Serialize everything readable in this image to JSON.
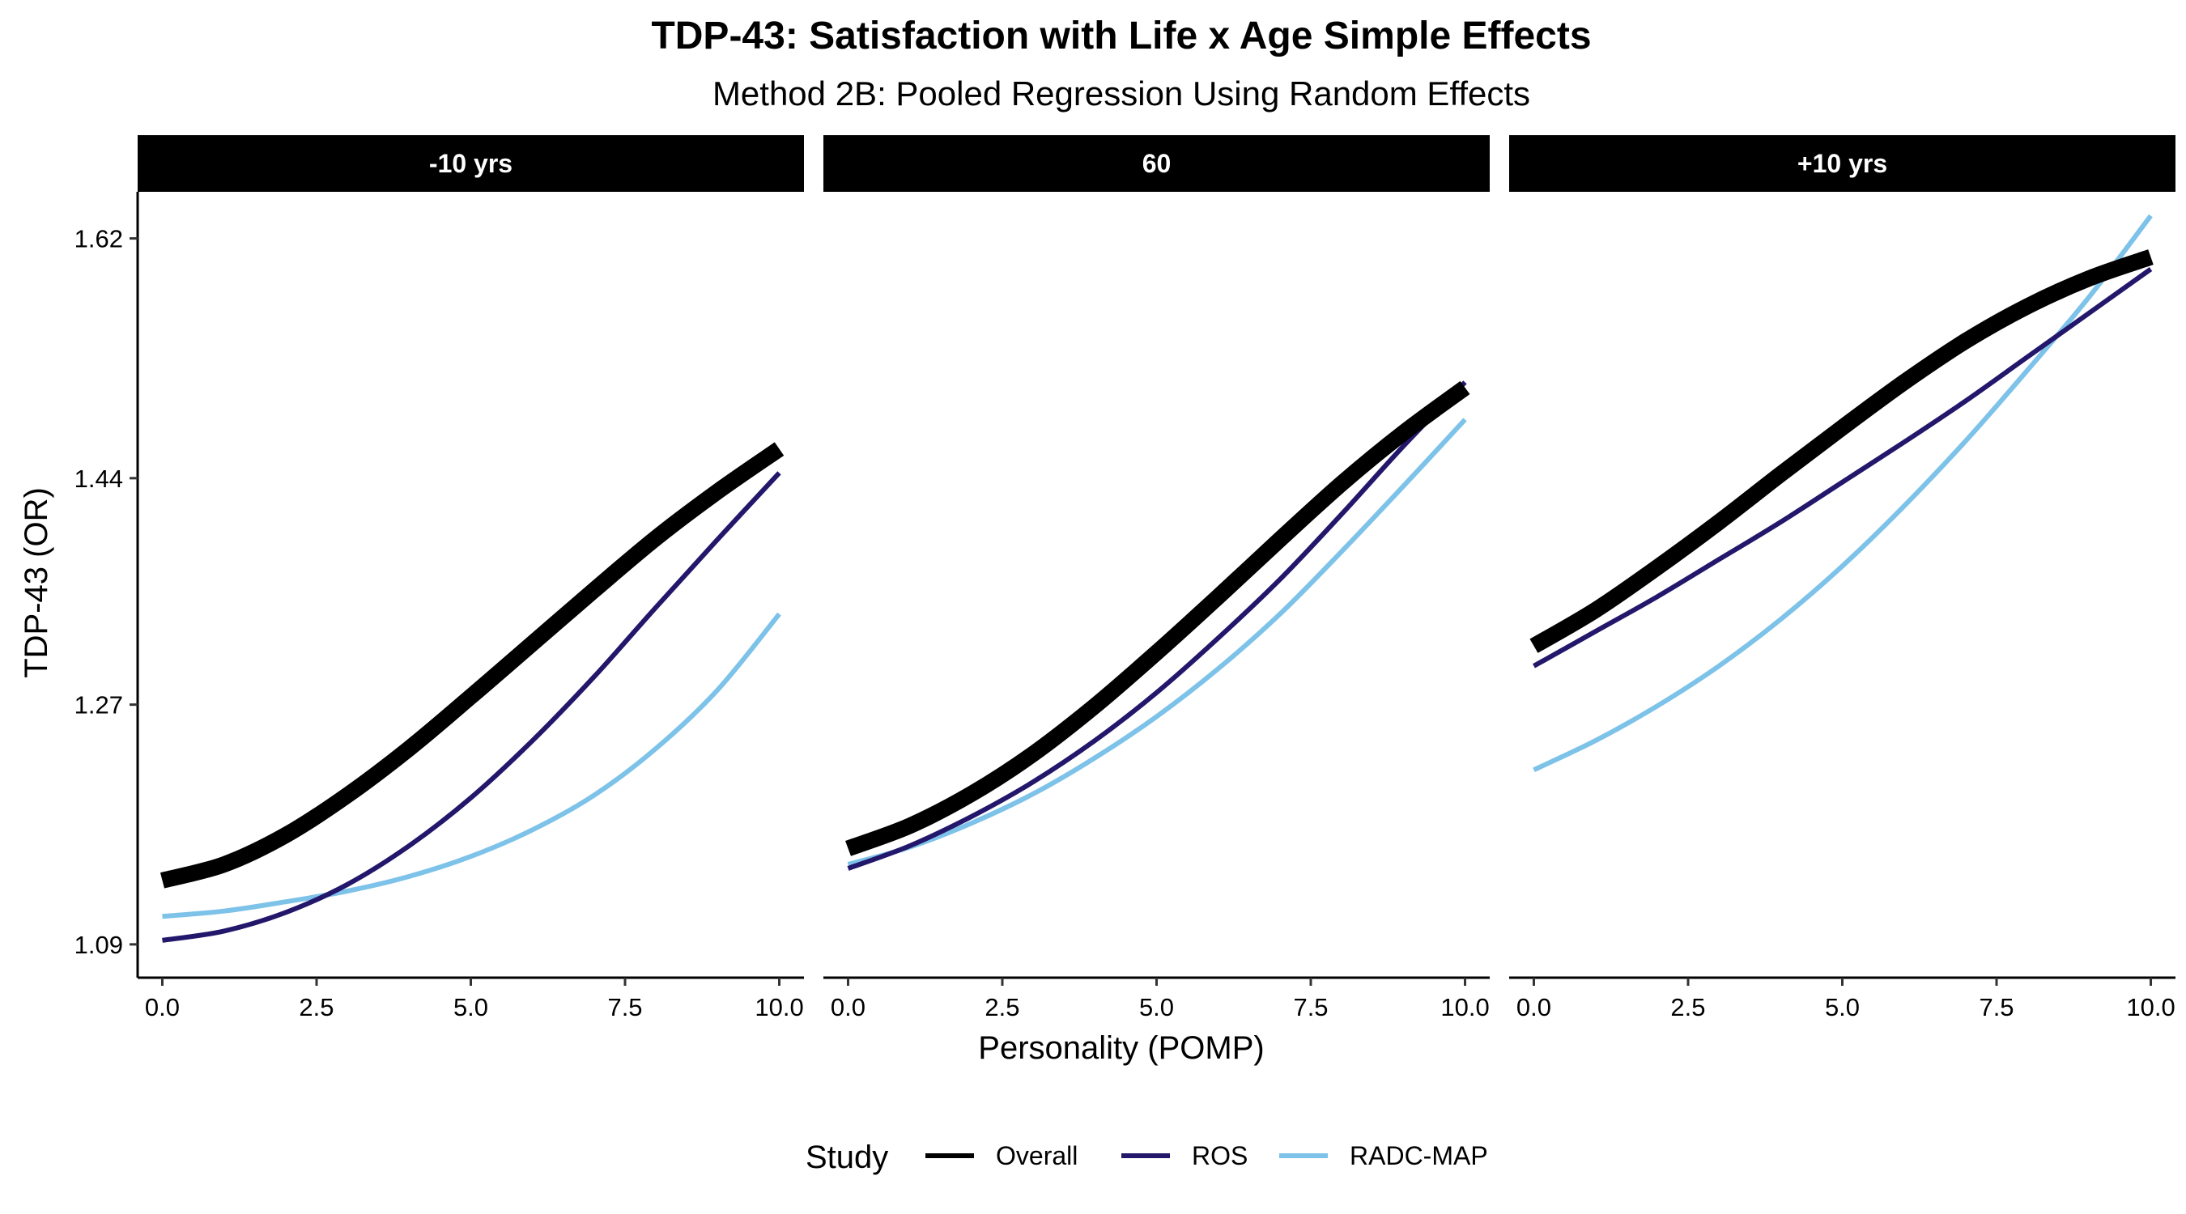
{
  "title": "TDP-43: Satisfaction with Life x Age Simple Effects",
  "subtitle": "Method 2B: Pooled Regression Using Random Effects",
  "legend": {
    "title": "Study",
    "items": [
      {
        "label": "Overall",
        "color": "#000000"
      },
      {
        "label": "ROS",
        "color": "#23176b"
      },
      {
        "label": "RADC-MAP",
        "color": "#7dc2e8"
      }
    ]
  },
  "chart_data": {
    "type": "line",
    "title": "TDP-43: Satisfaction with Life x Age Simple Effects",
    "subtitle": "Method 2B: Pooled Regression Using Random Effects",
    "xlabel": "Personality (POMP)",
    "ylabel": "TDP-43 (OR)",
    "xlim": [
      -0.4,
      10.4
    ],
    "ylim": [
      1.065,
      1.655
    ],
    "x_ticks": [
      0,
      2.5,
      5,
      7.5,
      10
    ],
    "x_tick_labels": [
      "0.0",
      "2.5",
      "5.0",
      "7.5",
      "10.0"
    ],
    "y_ticks": [
      1.09,
      1.27,
      1.44,
      1.62
    ],
    "y_tick_labels": [
      "1.09",
      "1.27",
      "1.44",
      "1.62"
    ],
    "grid": false,
    "legend_position": "bottom",
    "x": [
      0,
      1,
      2,
      3,
      4,
      5,
      6,
      7,
      8,
      9,
      10
    ],
    "panels": [
      {
        "label": "-10 yrs",
        "series": [
          {
            "name": "Overall",
            "values": [
              1.138,
              1.15,
              1.172,
              1.202,
              1.237,
              1.276,
              1.316,
              1.356,
              1.395,
              1.43,
              1.462
            ]
          },
          {
            "name": "ROS",
            "values": [
              1.093,
              1.1,
              1.114,
              1.135,
              1.164,
              1.2,
              1.243,
              1.291,
              1.343,
              1.394,
              1.444
            ]
          },
          {
            "name": "RADC-MAP",
            "values": [
              1.111,
              1.115,
              1.122,
              1.13,
              1.141,
              1.156,
              1.176,
              1.202,
              1.237,
              1.281,
              1.338
            ]
          }
        ]
      },
      {
        "label": "60",
        "series": [
          {
            "name": "Overall",
            "values": [
              1.162,
              1.179,
              1.203,
              1.233,
              1.269,
              1.309,
              1.351,
              1.394,
              1.436,
              1.474,
              1.508
            ]
          },
          {
            "name": "ROS",
            "values": [
              1.147,
              1.164,
              1.186,
              1.212,
              1.243,
              1.279,
              1.32,
              1.364,
              1.413,
              1.464,
              1.512
            ]
          },
          {
            "name": "RADC-MAP",
            "values": [
              1.15,
              1.163,
              1.181,
              1.203,
              1.23,
              1.261,
              1.297,
              1.338,
              1.385,
              1.434,
              1.484
            ]
          }
        ]
      },
      {
        "label": "+10 yrs",
        "series": [
          {
            "name": "Overall",
            "values": [
              1.314,
              1.341,
              1.373,
              1.407,
              1.443,
              1.478,
              1.512,
              1.543,
              1.569,
              1.59,
              1.606
            ]
          },
          {
            "name": "ROS",
            "values": [
              1.299,
              1.325,
              1.351,
              1.379,
              1.407,
              1.437,
              1.467,
              1.498,
              1.531,
              1.564,
              1.597
            ]
          },
          {
            "name": "RADC-MAP",
            "values": [
              1.221,
              1.243,
              1.269,
              1.299,
              1.334,
              1.374,
              1.419,
              1.468,
              1.521,
              1.576,
              1.637
            ]
          }
        ]
      }
    ]
  }
}
